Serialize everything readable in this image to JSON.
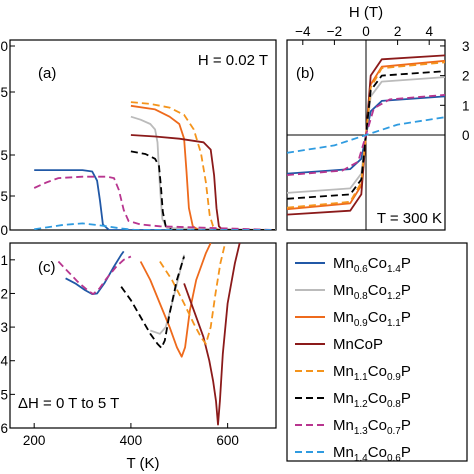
{
  "chart_data": [
    {
      "panel_label": "(a)",
      "annotation": "H = 0.02 T",
      "type": "line",
      "ylim": [
        0,
        5.2
      ],
      "yticks": [
        "0",
        "5",
        "5",
        "5",
        "0"
      ],
      "series": [
        {
          "name": "Mn0.6Co1.4P",
          "color": "#2158a6",
          "dash": "none",
          "points": [
            [
              200,
              1.64
            ],
            [
              300,
              1.64
            ],
            [
              320,
              1.6
            ],
            [
              330,
              1.35
            ],
            [
              336,
              0.8
            ],
            [
              342,
              0.15
            ],
            [
              355,
              0.0
            ],
            [
              700,
              0.0
            ]
          ]
        },
        {
          "name": "Mn0.8Co1.2P",
          "color": "#bbbbbb",
          "dash": "none",
          "points": [
            [
              400,
              3.1
            ],
            [
              420,
              3.02
            ],
            [
              440,
              2.9
            ],
            [
              450,
              2.75
            ],
            [
              455,
              2.4
            ],
            [
              460,
              1.2
            ],
            [
              465,
              0.3
            ],
            [
              475,
              0.05
            ],
            [
              700,
              0.0
            ]
          ]
        },
        {
          "name": "Mn0.9Co1.1P",
          "color": "#ee6a1c",
          "dash": "none",
          "points": [
            [
              400,
              3.4
            ],
            [
              450,
              3.3
            ],
            [
              480,
              3.1
            ],
            [
              500,
              2.9
            ],
            [
              510,
              2.5
            ],
            [
              515,
              1.6
            ],
            [
              520,
              0.6
            ],
            [
              528,
              0.1
            ],
            [
              540,
              0.0
            ],
            [
              700,
              0.0
            ]
          ]
        },
        {
          "name": "MnCoP",
          "color": "#8b1a1a",
          "dash": "none",
          "points": [
            [
              400,
              2.6
            ],
            [
              450,
              2.56
            ],
            [
              500,
              2.5
            ],
            [
              550,
              2.4
            ],
            [
              565,
              2.2
            ],
            [
              572,
              1.5
            ],
            [
              577,
              0.6
            ],
            [
              582,
              0.1
            ],
            [
              590,
              0.0
            ],
            [
              700,
              0.0
            ]
          ]
        },
        {
          "name": "Mn1.1Co0.9P",
          "color": "#f4941c",
          "dash": "7,4",
          "points": [
            [
              400,
              3.5
            ],
            [
              440,
              3.45
            ],
            [
              480,
              3.35
            ],
            [
              510,
              3.15
            ],
            [
              530,
              2.75
            ],
            [
              545,
              2.1
            ],
            [
              555,
              1.3
            ],
            [
              563,
              0.4
            ],
            [
              570,
              0.1
            ],
            [
              580,
              0.0
            ],
            [
              700,
              0.0
            ]
          ]
        },
        {
          "name": "Mn1.2Co0.8P",
          "color": "#000000",
          "dash": "7,4",
          "points": [
            [
              400,
              2.15
            ],
            [
              430,
              2.08
            ],
            [
              450,
              1.95
            ],
            [
              458,
              1.75
            ],
            [
              462,
              1.2
            ],
            [
              466,
              0.5
            ],
            [
              472,
              0.1
            ],
            [
              485,
              0.0
            ],
            [
              700,
              0.0
            ]
          ]
        },
        {
          "name": "Mn1.3Co0.7P",
          "color": "#b8358f",
          "dash": "7,4",
          "points": [
            [
              200,
              1.15
            ],
            [
              225,
              1.3
            ],
            [
              250,
              1.42
            ],
            [
              300,
              1.46
            ],
            [
              350,
              1.46
            ],
            [
              365,
              1.42
            ],
            [
              375,
              1.1
            ],
            [
              385,
              0.55
            ],
            [
              395,
              0.25
            ],
            [
              420,
              0.15
            ],
            [
              460,
              0.1
            ],
            [
              700,
              0.0
            ]
          ]
        },
        {
          "name": "Mn1.4Co0.6P",
          "color": "#2f9be0",
          "dash": "7,4",
          "points": [
            [
              200,
              0.02
            ],
            [
              260,
              0.14
            ],
            [
              300,
              0.18
            ],
            [
              340,
              0.12
            ],
            [
              380,
              0.04
            ],
            [
              410,
              0.0
            ],
            [
              700,
              0.0
            ]
          ]
        }
      ]
    },
    {
      "panel_label": "(b)",
      "annotation": "T = 300 K",
      "type": "line",
      "xlabel": "H (T)",
      "xlim": [
        -5,
        5
      ],
      "xticks": [
        "−4",
        "−2",
        "0",
        "2",
        "4"
      ],
      "ylim": [
        -3.2,
        3.2
      ],
      "yticks": [
        "3",
        "2",
        "1",
        "0"
      ],
      "series": [
        {
          "name": "Mn0.6Co1.4P",
          "color": "#2158a6",
          "dash": "none",
          "points": [
            [
              -5,
              -1.3
            ],
            [
              -1,
              -1.15
            ],
            [
              -0.3,
              -0.8
            ],
            [
              0,
              0
            ],
            [
              0.3,
              0.8
            ],
            [
              1,
              1.15
            ],
            [
              5,
              1.3
            ]
          ]
        },
        {
          "name": "Mn0.8Co1.2P",
          "color": "#bbbbbb",
          "dash": "none",
          "points": [
            [
              -5,
              -1.95
            ],
            [
              -1,
              -1.8
            ],
            [
              -0.3,
              -1.3
            ],
            [
              0,
              0
            ],
            [
              0.3,
              1.3
            ],
            [
              1,
              1.8
            ],
            [
              5,
              1.95
            ]
          ]
        },
        {
          "name": "Mn0.9Co1.1P",
          "color": "#ee6a1c",
          "dash": "none",
          "points": [
            [
              -5,
              -2.5
            ],
            [
              -1,
              -2.3
            ],
            [
              -0.3,
              -1.7
            ],
            [
              0,
              0
            ],
            [
              0.3,
              1.7
            ],
            [
              1,
              2.3
            ],
            [
              5,
              2.5
            ]
          ]
        },
        {
          "name": "MnCoP",
          "color": "#8b1a1a",
          "dash": "none",
          "points": [
            [
              -5,
              -2.68
            ],
            [
              -1,
              -2.55
            ],
            [
              -0.3,
              -2.0
            ],
            [
              0,
              0
            ],
            [
              0.3,
              2.0
            ],
            [
              1,
              2.55
            ],
            [
              5,
              2.68
            ]
          ]
        },
        {
          "name": "Mn1.1Co0.9P",
          "color": "#f4941c",
          "dash": "7,4",
          "points": [
            [
              -5,
              -2.45
            ],
            [
              -1,
              -2.25
            ],
            [
              -0.3,
              -1.6
            ],
            [
              0,
              0
            ],
            [
              0.3,
              1.6
            ],
            [
              1,
              2.25
            ],
            [
              5,
              2.45
            ]
          ]
        },
        {
          "name": "Mn1.2Co0.8P",
          "color": "#000000",
          "dash": "7,4",
          "points": [
            [
              -5,
              -2.15
            ],
            [
              -1,
              -2.0
            ],
            [
              -0.3,
              -1.5
            ],
            [
              0,
              0
            ],
            [
              0.3,
              1.5
            ],
            [
              1,
              2.0
            ],
            [
              5,
              2.15
            ]
          ]
        },
        {
          "name": "Mn1.3Co0.7P",
          "color": "#b8358f",
          "dash": "7,4",
          "points": [
            [
              -5,
              -1.35
            ],
            [
              -1.5,
              -1.2
            ],
            [
              -0.5,
              -0.9
            ],
            [
              0,
              0
            ],
            [
              0.5,
              0.9
            ],
            [
              1.5,
              1.2
            ],
            [
              5,
              1.35
            ]
          ]
        },
        {
          "name": "Mn1.4Co0.6P",
          "color": "#2f9be0",
          "dash": "7,4",
          "points": [
            [
              -5,
              -0.6
            ],
            [
              -2,
              -0.35
            ],
            [
              0,
              0
            ],
            [
              2,
              0.35
            ],
            [
              5,
              0.6
            ]
          ]
        }
      ]
    },
    {
      "panel_label": "(c)",
      "annotation": "ΔH = 0 T to 5 T",
      "type": "line",
      "xlabel": "T (K)",
      "xlim": [
        150,
        700
      ],
      "xticks": [
        "200",
        "400",
        "600"
      ],
      "ylim": [
        -6,
        -0.5
      ],
      "yticks": [
        "-1",
        "2",
        "3",
        "4",
        "5",
        "6"
      ],
      "series": [
        {
          "name": "Mn0.6Co1.4P",
          "color": "#2158a6",
          "dash": "none",
          "points": [
            [
              265,
              -1.55
            ],
            [
              285,
              -1.7
            ],
            [
              305,
              -1.9
            ],
            [
              320,
              -2.02
            ],
            [
              330,
              -2.0
            ],
            [
              345,
              -1.7
            ],
            [
              365,
              -1.2
            ],
            [
              380,
              -0.85
            ],
            [
              385,
              -0.75
            ]
          ]
        },
        {
          "name": "Mn0.8Co1.2P",
          "color": "#bbbbbb",
          "dash": "none",
          "points": [
            [
              440,
              -3.1
            ],
            [
              460,
              -3.2
            ],
            [
              472,
              -3.0
            ],
            [
              485,
              -2.3
            ],
            [
              498,
              -1.55
            ],
            [
              510,
              -0.85
            ]
          ]
        },
        {
          "name": "Mn0.9Co1.1P",
          "color": "#ee6a1c",
          "dash": "none",
          "points": [
            [
              420,
              -1.05
            ],
            [
              440,
              -1.6
            ],
            [
              460,
              -2.3
            ],
            [
              480,
              -3.0
            ],
            [
              495,
              -3.6
            ],
            [
              505,
              -3.88
            ],
            [
              512,
              -3.6
            ],
            [
              522,
              -2.5
            ],
            [
              535,
              -1.6
            ],
            [
              555,
              -0.8
            ],
            [
              565,
              -0.5
            ]
          ]
        },
        {
          "name": "MnCoP",
          "color": "#8b1a1a",
          "dash": "none",
          "points": [
            [
              510,
              -1.7
            ],
            [
              530,
              -2.5
            ],
            [
              550,
              -3.3
            ],
            [
              562,
              -4.0
            ],
            [
              570,
              -4.6
            ],
            [
              576,
              -5.2
            ],
            [
              580,
              -5.9
            ],
            [
              584,
              -5.2
            ],
            [
              590,
              -3.8
            ],
            [
              600,
              -2.3
            ],
            [
              615,
              -1.1
            ],
            [
              625,
              -0.5
            ]
          ]
        },
        {
          "name": "Mn1.1Co0.9P",
          "color": "#f4941c",
          "dash": "7,4",
          "points": [
            [
              460,
              -1.05
            ],
            [
              485,
              -1.6
            ],
            [
              510,
              -2.3
            ],
            [
              530,
              -2.9
            ],
            [
              545,
              -3.3
            ],
            [
              555,
              -3.5
            ],
            [
              565,
              -3.0
            ],
            [
              575,
              -2.0
            ],
            [
              585,
              -1.1
            ],
            [
              595,
              -0.5
            ]
          ]
        },
        {
          "name": "Mn1.2Co0.8P",
          "color": "#000000",
          "dash": "7,4",
          "points": [
            [
              380,
              -1.8
            ],
            [
              400,
              -2.2
            ],
            [
              420,
              -2.7
            ],
            [
              440,
              -3.2
            ],
            [
              455,
              -3.5
            ],
            [
              463,
              -3.62
            ],
            [
              470,
              -3.4
            ],
            [
              480,
              -2.6
            ],
            [
              495,
              -1.6
            ],
            [
              510,
              -0.9
            ]
          ]
        },
        {
          "name": "Mn1.3Co0.7P",
          "color": "#b8358f",
          "dash": "7,4",
          "points": [
            [
              250,
              -1.05
            ],
            [
              270,
              -1.35
            ],
            [
              290,
              -1.65
            ],
            [
              310,
              -1.9
            ],
            [
              322,
              -2.02
            ],
            [
              335,
              -1.85
            ],
            [
              350,
              -1.55
            ],
            [
              370,
              -1.2
            ],
            [
              385,
              -1.0
            ],
            [
              400,
              -0.9
            ]
          ]
        },
        {
          "name": "Mn1.4Co0.6P",
          "color": "#2f9be0",
          "dash": "7,4",
          "points": []
        }
      ]
    }
  ],
  "legend": {
    "entries": [
      {
        "base": "Mn",
        "s1": "0.6",
        "mid": "Co",
        "s2": "1.4",
        "tail": "P",
        "color": "#2158a6",
        "dash": "none"
      },
      {
        "base": "Mn",
        "s1": "0.8",
        "mid": "Co",
        "s2": "1.2",
        "tail": "P",
        "color": "#bbbbbb",
        "dash": "none"
      },
      {
        "base": "Mn",
        "s1": "0.9",
        "mid": "Co",
        "s2": "1.1",
        "tail": "P",
        "color": "#ee6a1c",
        "dash": "none"
      },
      {
        "base": "MnCoP",
        "s1": "",
        "mid": "",
        "s2": "",
        "tail": "",
        "color": "#8b1a1a",
        "dash": "none"
      },
      {
        "base": "Mn",
        "s1": "1.1",
        "mid": "Co",
        "s2": "0.9",
        "tail": "P",
        "color": "#f4941c",
        "dash": "7,4"
      },
      {
        "base": "Mn",
        "s1": "1.2",
        "mid": "Co",
        "s2": "0.8",
        "tail": "P",
        "color": "#000000",
        "dash": "7,4"
      },
      {
        "base": "Mn",
        "s1": "1.3",
        "mid": "Co",
        "s2": "0.7",
        "tail": "P",
        "color": "#b8358f",
        "dash": "7,4"
      },
      {
        "base": "Mn",
        "s1": "1.4",
        "mid": "Co",
        "s2": "0.6",
        "tail": "P",
        "color": "#2f9be0",
        "dash": "7,4"
      }
    ]
  }
}
